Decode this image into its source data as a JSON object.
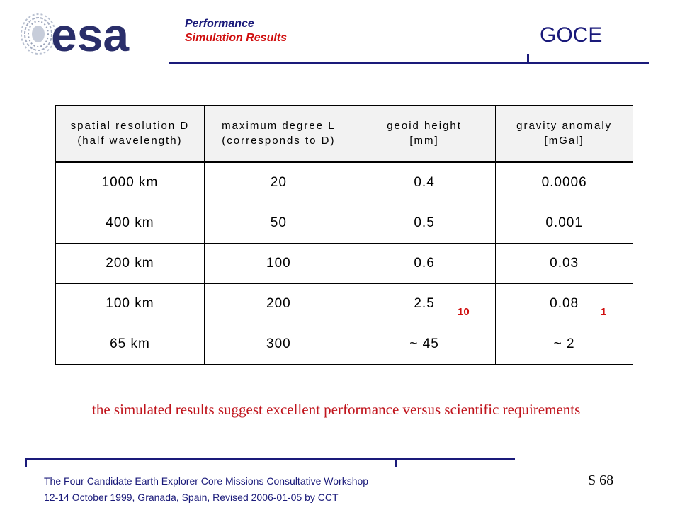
{
  "header": {
    "section": "Performance",
    "subsection": "Simulation Results",
    "mission": "GOCE",
    "logo_text": "esa"
  },
  "table": {
    "headers": [
      [
        "spatial resolution D",
        "(half wavelength)"
      ],
      [
        "maximum degree L",
        "(corresponds to D)"
      ],
      [
        "geoid height",
        "[mm]"
      ],
      [
        "gravity anomaly",
        "[mGal]"
      ]
    ],
    "rows": [
      {
        "resolution": "1000 km",
        "degree": "20",
        "geoid": "0.4",
        "gravity": "0.0006"
      },
      {
        "resolution": "400 km",
        "degree": "50",
        "geoid": "0.5",
        "gravity": "0.001"
      },
      {
        "resolution": "200 km",
        "degree": "100",
        "geoid": "0.6",
        "gravity": "0.03"
      },
      {
        "resolution": "100 km",
        "degree": "200",
        "geoid": "2.5",
        "gravity": "0.08"
      },
      {
        "resolution": "65 km",
        "degree": "300",
        "geoid": "~ 45",
        "gravity": "~ 2"
      }
    ],
    "requirements": {
      "geoid": "10",
      "gravity": "1"
    }
  },
  "conclusion": "the simulated results suggest excellent performance versus scientific requirements",
  "footer": {
    "line1": "The Four Candidate Earth Explorer Core Missions Consultative Workshop",
    "line2": "12-14 October 1999, Granada, Spain, Revised 2006-01-05 by CCT",
    "slide_number": "S 68"
  },
  "colors": {
    "navy": "#1a1a7a",
    "red": "#d01010",
    "logo_grey": "#9aa3b8"
  }
}
